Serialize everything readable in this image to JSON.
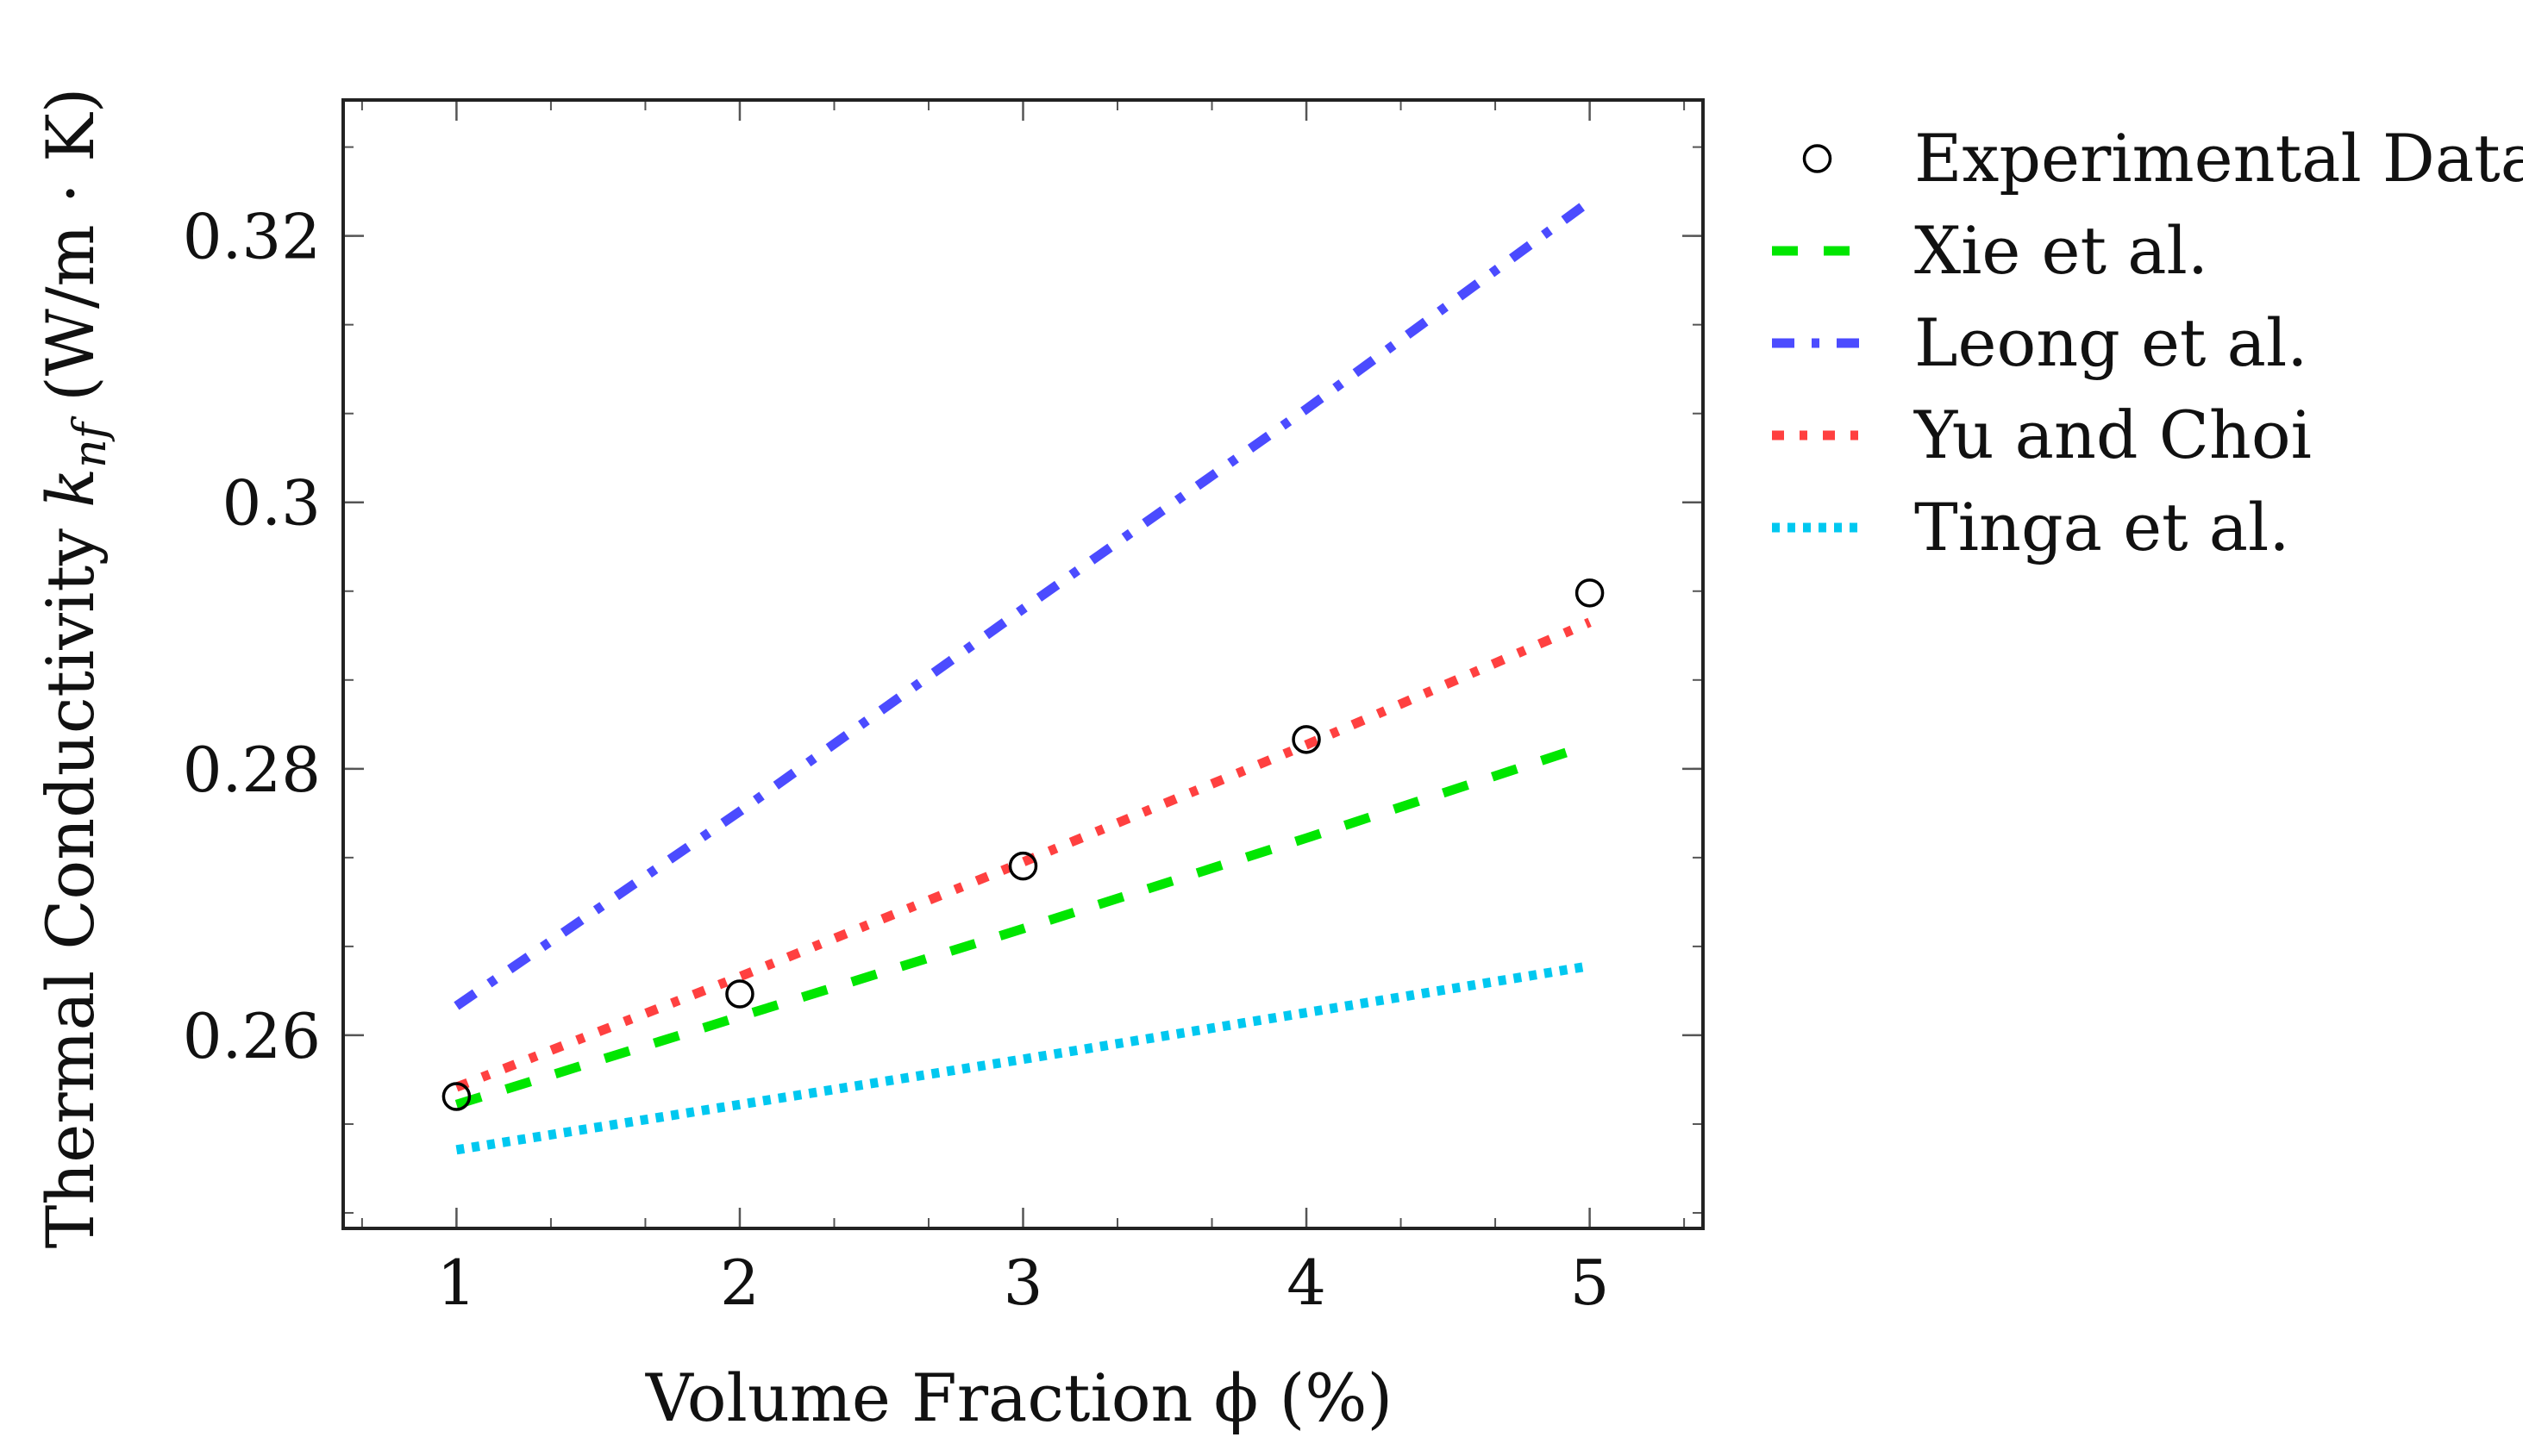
{
  "chart_data": {
    "type": "line",
    "title": "",
    "xlabel": "Volume Fraction ϕ (%)",
    "ylabel_main": "Thermal Conductivity ",
    "ylabel_symbol": "k",
    "ylabel_subscript": "nf",
    "ylabel_units": " (W/m · K)",
    "xlim": [
      0.6,
      5.4
    ],
    "ylim": [
      0.2455,
      0.3302
    ],
    "x_ticks": [
      1,
      2,
      3,
      4,
      5
    ],
    "x_tick_labels": [
      "1",
      "2",
      "3",
      "4",
      "5"
    ],
    "y_ticks": [
      0.26,
      0.28,
      0.3,
      0.32
    ],
    "y_tick_labels": [
      "0.26",
      "0.28",
      "0.3",
      "0.32"
    ],
    "x_minor_step": 0.333333,
    "y_minor_step": 0.00666667,
    "grid": false,
    "legend_position": "outside-right",
    "x": [
      1,
      2,
      3,
      4,
      5
    ],
    "experimental": {
      "name": "Experimental Data",
      "marker": "circle",
      "color": "#000000",
      "values": [
        0.2554,
        0.2631,
        0.2727,
        0.2822,
        0.2932
      ]
    },
    "series": [
      {
        "name": "Xie et al.",
        "style": "dashed",
        "color": "#00e600",
        "values": [
          0.2548,
          0.2614,
          0.268,
          0.2748,
          0.2818
        ]
      },
      {
        "name": "Leong et al.",
        "style": "dashdot",
        "color": "#4b4bff",
        "values": [
          0.2622,
          0.2768,
          0.292,
          0.307,
          0.3226
        ]
      },
      {
        "name": "Yu and Choi",
        "style": "dashdotdot",
        "color": "#ff4040",
        "values": [
          0.2561,
          0.2644,
          0.273,
          0.2818,
          0.291
        ]
      },
      {
        "name": "Tinga et al.",
        "style": "dotted",
        "color": "#00c8f0",
        "values": [
          0.2514,
          0.2548,
          0.2582,
          0.2617,
          0.2652
        ]
      }
    ]
  }
}
